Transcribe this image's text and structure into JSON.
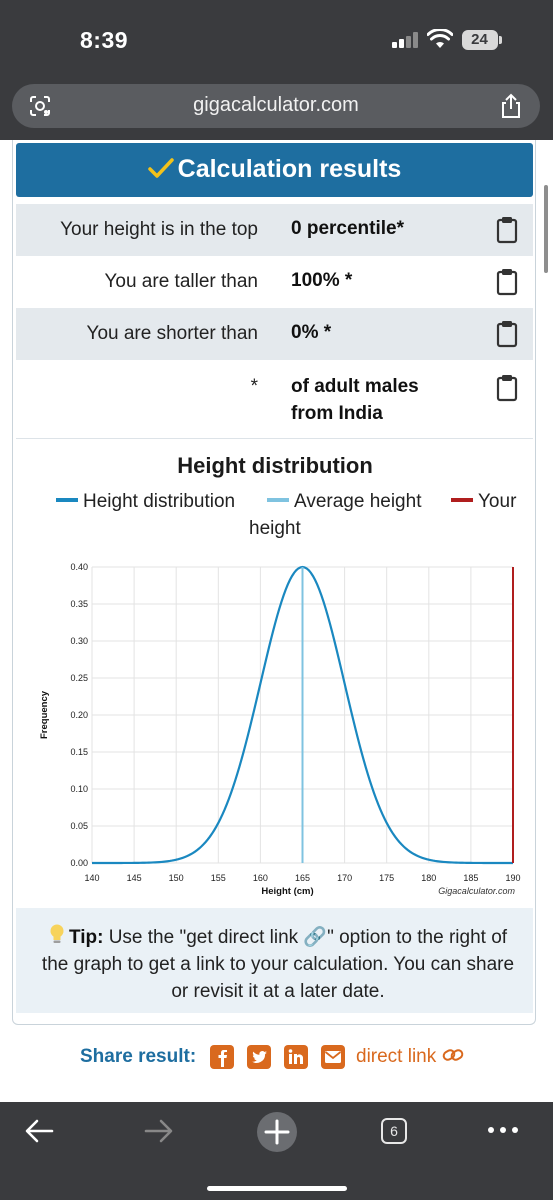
{
  "status_bar": {
    "time": "8:39",
    "battery": "24"
  },
  "browser": {
    "url": "gigacalculator.com"
  },
  "results": {
    "title": "Calculation results",
    "rows": [
      {
        "label": "Your height is in the top",
        "value": "0 percentile*"
      },
      {
        "label": "You are taller than",
        "value": "100% *"
      },
      {
        "label": "You are shorter than",
        "value": "0% *"
      },
      {
        "label": "*",
        "value_line1": "of adult males",
        "value_line2": "from India"
      }
    ]
  },
  "chart": {
    "title": "Height distribution",
    "legend": [
      {
        "label": "Height distribution",
        "color": "#1a88c0"
      },
      {
        "label": "Average height",
        "color": "#7fc3e0"
      },
      {
        "label_line1": "Your",
        "label_line2": "height",
        "color": "#b01e1e"
      }
    ],
    "credit": "Gigacalculator.com"
  },
  "chart_data": {
    "type": "line",
    "xlabel": "Height (cm)",
    "ylabel": "Frequency",
    "xlim": [
      140,
      190
    ],
    "ylim": [
      0,
      0.4
    ],
    "x_ticks": [
      "140",
      "145",
      "150",
      "155",
      "160",
      "165",
      "170",
      "175",
      "180",
      "185",
      "190"
    ],
    "y_ticks": [
      "0.00",
      "0.05",
      "0.10",
      "0.15",
      "0.20",
      "0.25",
      "0.30",
      "0.35",
      "0.40"
    ],
    "grid": true,
    "series": [
      {
        "name": "Height distribution",
        "color": "#1a88c0",
        "x": [
          140,
          145,
          148,
          150,
          152,
          154,
          156,
          158,
          160,
          162,
          164,
          165,
          166,
          168,
          170,
          172,
          174,
          176,
          178,
          180,
          182,
          185,
          190
        ],
        "y": [
          0.0,
          0.004,
          0.014,
          0.027,
          0.048,
          0.081,
          0.128,
          0.186,
          0.251,
          0.318,
          0.376,
          0.4,
          0.376,
          0.318,
          0.251,
          0.186,
          0.128,
          0.081,
          0.048,
          0.027,
          0.014,
          0.004,
          0.0
        ]
      },
      {
        "name": "Average height",
        "color": "#7fc3e0",
        "x": [
          165,
          165
        ],
        "y": [
          0,
          0.4
        ]
      },
      {
        "name": "Your height",
        "color": "#b01e1e",
        "x": [
          190,
          190
        ],
        "y": [
          0,
          0.4
        ]
      }
    ]
  },
  "tip": {
    "bold": "Tip:",
    "text": " Use the \"get direct link 🔗\" option to the right of the graph to get a link to your calculation. You can share or revisit it at a later date."
  },
  "share": {
    "label": "Share result:",
    "direct_link": "direct link"
  },
  "bottom_bar": {
    "tab_count": "6"
  },
  "icons": [
    "lens-icon",
    "share-icon",
    "check-icon",
    "clipboard-icon",
    "bulb-icon",
    "facebook-icon",
    "twitter-icon",
    "linkedin-icon",
    "email-icon",
    "link-icon",
    "back-icon",
    "forward-icon",
    "new-tab-icon",
    "tabs-icon",
    "more-icon"
  ]
}
